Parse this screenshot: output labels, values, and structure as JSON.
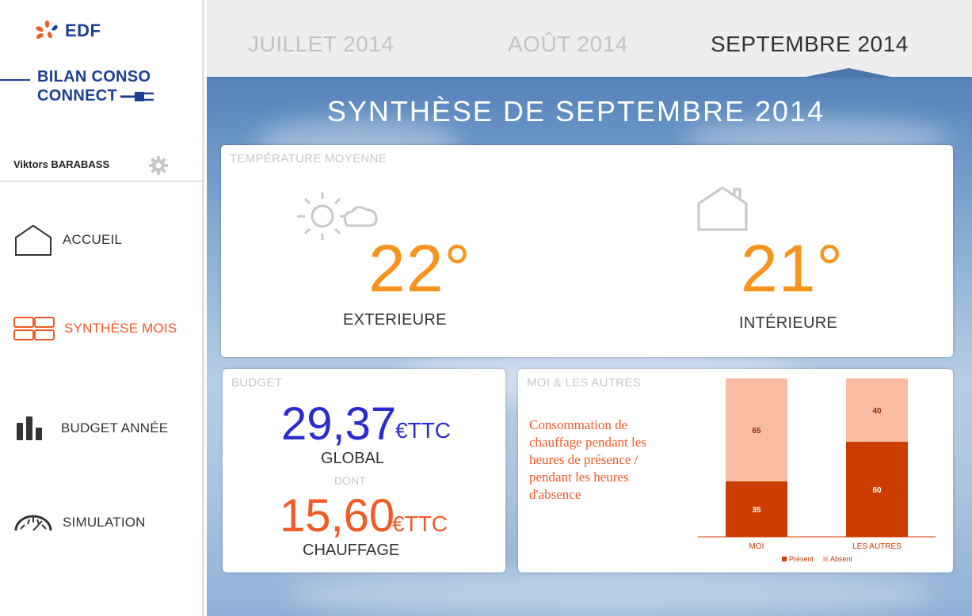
{
  "sidebar": {
    "logo_text": "EDF",
    "brand_line1": "BILAN CONSO",
    "brand_line2": "CONNECT",
    "user_name": "Viktors BARABASS",
    "nav": [
      {
        "label": "ACCUEIL",
        "icon": "home-icon"
      },
      {
        "label": "SYNTHÈSE MOIS",
        "icon": "grid-icon",
        "active": true
      },
      {
        "label": "BUDGET ANNÉE",
        "icon": "bar-chart-icon"
      },
      {
        "label": "SIMULATION",
        "icon": "gauge-icon"
      }
    ]
  },
  "tabs": [
    "JUILLET 2014",
    "AOÛT 2014",
    "SEPTEMBRE 2014"
  ],
  "page_title": "SYNTHÈSE DE SEPTEMBRE  2014",
  "temperature": {
    "title": "TEMPÉRATURE MOYENNE",
    "exterior": {
      "value": "22°",
      "label": "EXTERIEURE"
    },
    "interior": {
      "value": "21°",
      "label": "INTÉRIEURE"
    }
  },
  "budget": {
    "title": "BUDGET",
    "global_value": "29,37",
    "global_unit": "€TTC",
    "global_label": "GLOBAL",
    "dont": "DONT",
    "heating_value": "15,60",
    "heating_unit": "€TTC",
    "heating_label": "CHAUFFAGE"
  },
  "moi": {
    "title": "MOI & LES AUTRES",
    "description": "Consommation de chauffage pendant les heures de présence / pendant les heures d'absence"
  },
  "colors": {
    "accent_orange": "#f7941d",
    "nav_active": "#f15a24",
    "brand_blue": "#1b3f94",
    "global_blue": "#2b2bd0",
    "present": "#cc3d00",
    "absent": "#f9bca2"
  },
  "chart_data": {
    "type": "bar",
    "stacked": true,
    "categories": [
      "MOI",
      "LES AUTRES"
    ],
    "series": [
      {
        "name": "Présent",
        "values": [
          35,
          60
        ],
        "color": "#cc3d00"
      },
      {
        "name": "Absent",
        "values": [
          65,
          40
        ],
        "color": "#f9bca2"
      }
    ],
    "ylim": [
      0,
      100
    ],
    "legend": "bottom"
  }
}
